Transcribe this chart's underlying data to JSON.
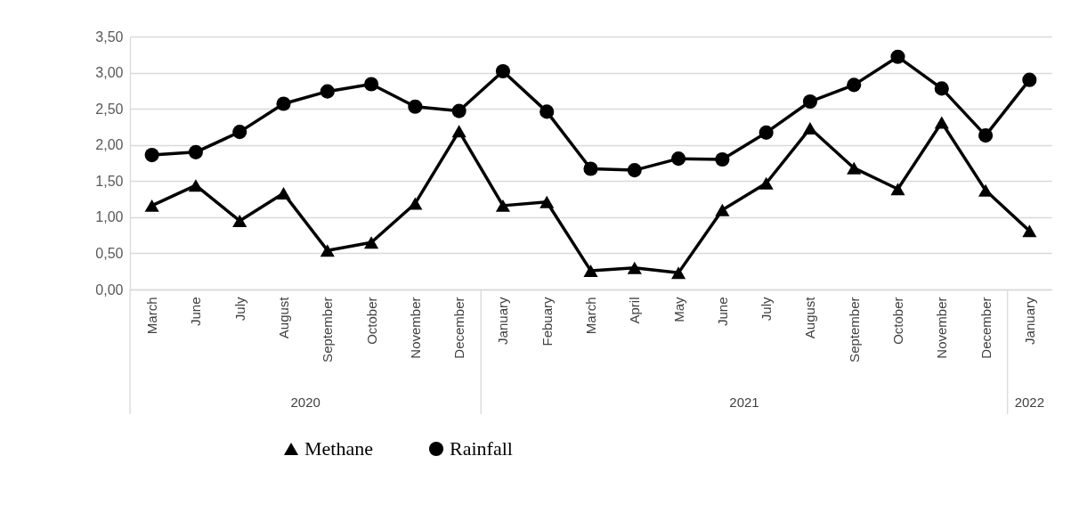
{
  "chart_data": {
    "type": "line",
    "categories": [
      "March",
      "June",
      "July",
      "August",
      "September",
      "October",
      "November",
      "December",
      "January",
      "Febuary",
      "March",
      "April",
      "May",
      "June",
      "July",
      "August",
      "September",
      "October",
      "November",
      "December",
      "January"
    ],
    "series": [
      {
        "name": "Methane",
        "color": "#000000",
        "marker": "triangle",
        "values": [
          1.16,
          1.44,
          0.95,
          1.33,
          0.54,
          0.65,
          1.19,
          2.19,
          1.16,
          1.21,
          0.26,
          0.3,
          0.23,
          1.1,
          1.47,
          2.23,
          1.68,
          1.39,
          2.31,
          1.37,
          0.81
        ]
      },
      {
        "name": "Rainfall",
        "color": "#000000",
        "marker": "circle",
        "values": [
          1.86,
          1.9,
          2.18,
          2.57,
          2.74,
          2.84,
          2.53,
          2.47,
          3.02,
          2.46,
          1.67,
          1.65,
          1.81,
          1.8,
          2.17,
          2.6,
          2.83,
          3.22,
          2.78,
          2.13,
          2.9
        ]
      }
    ],
    "ylim": [
      0,
      3.5
    ],
    "yticks": [
      {
        "value": 0,
        "label": "0,00"
      },
      {
        "value": 0.5,
        "label": "0,50"
      },
      {
        "value": 1,
        "label": "1,00"
      },
      {
        "value": 1.5,
        "label": "1,50"
      },
      {
        "value": 2,
        "label": "2,00"
      },
      {
        "value": 2.5,
        "label": "2,50"
      },
      {
        "value": 3,
        "label": "3,00"
      },
      {
        "value": 3.5,
        "label": "3,50"
      }
    ],
    "annotations": [
      "2020",
      "2021",
      "2022"
    ],
    "grid": "y",
    "legend": "bottom",
    "line_style": "solid"
  }
}
